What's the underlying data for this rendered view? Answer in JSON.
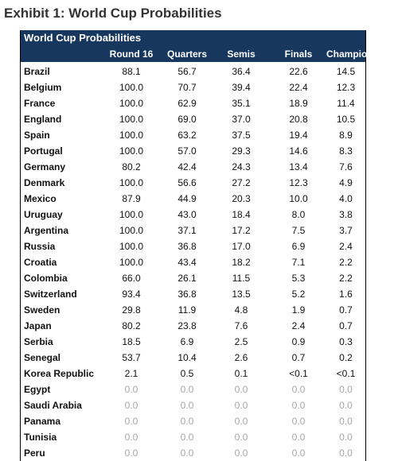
{
  "title": "Exhibit 1: World Cup Probabilities",
  "table": {
    "caption": "World Cup Probabilities",
    "header_color": "#17375e",
    "muted_color": "#a6a6a6",
    "columns": [
      "",
      "Round 16",
      "Quarters",
      "Semis",
      "Finals",
      "Champion"
    ],
    "rows": [
      {
        "cells": [
          "Brazil",
          "88.1",
          "56.7",
          "36.4",
          "22.6",
          "14.5"
        ]
      },
      {
        "cells": [
          "Belgium",
          "100.0",
          "70.7",
          "39.4",
          "22.4",
          "12.3"
        ]
      },
      {
        "cells": [
          "France",
          "100.0",
          "62.9",
          "35.1",
          "18.9",
          "11.4"
        ]
      },
      {
        "cells": [
          "England",
          "100.0",
          "69.0",
          "37.0",
          "20.8",
          "10.5"
        ]
      },
      {
        "cells": [
          "Spain",
          "100.0",
          "63.2",
          "37.5",
          "19.4",
          "8.9"
        ]
      },
      {
        "cells": [
          "Portugal",
          "100.0",
          "57.0",
          "29.3",
          "14.6",
          "8.3"
        ]
      },
      {
        "cells": [
          "Germany",
          "80.2",
          "42.4",
          "24.3",
          "13.4",
          "7.6"
        ]
      },
      {
        "cells": [
          "Denmark",
          "100.0",
          "56.6",
          "27.2",
          "12.3",
          "4.9"
        ]
      },
      {
        "cells": [
          "Mexico",
          "87.9",
          "44.9",
          "20.3",
          "10.0",
          "4.0"
        ]
      },
      {
        "cells": [
          "Uruguay",
          "100.0",
          "43.0",
          "18.4",
          "8.0",
          "3.8"
        ]
      },
      {
        "cells": [
          "Argentina",
          "100.0",
          "37.1",
          "17.2",
          "7.5",
          "3.7"
        ]
      },
      {
        "cells": [
          "Russia",
          "100.0",
          "36.8",
          "17.0",
          "6.9",
          "2.4"
        ]
      },
      {
        "cells": [
          "Croatia",
          "100.0",
          "43.4",
          "18.2",
          "7.1",
          "2.2"
        ]
      },
      {
        "cells": [
          "Colombia",
          "66.0",
          "26.1",
          "11.5",
          "5.3",
          "2.2"
        ]
      },
      {
        "cells": [
          "Switzerland",
          "93.4",
          "36.8",
          "13.5",
          "5.2",
          "1.6"
        ]
      },
      {
        "cells": [
          "Sweden",
          "29.8",
          "11.9",
          "4.8",
          "1.9",
          "0.7"
        ]
      },
      {
        "cells": [
          "Japan",
          "80.2",
          "23.8",
          "7.6",
          "2.4",
          "0.7"
        ]
      },
      {
        "cells": [
          "Serbia",
          "18.5",
          "6.9",
          "2.5",
          "0.9",
          "0.3"
        ]
      },
      {
        "cells": [
          "Senegal",
          "53.7",
          "10.4",
          "2.6",
          "0.7",
          "0.2"
        ]
      },
      {
        "cells": [
          "Korea Republic",
          "2.1",
          "0.5",
          "0.1",
          "<0.1",
          "<0.1"
        ]
      },
      {
        "cells": [
          "Egypt",
          "0.0",
          "0.0",
          "0.0",
          "0.0",
          "0.0"
        ],
        "muted": true
      },
      {
        "cells": [
          "Saudi Arabia",
          "0.0",
          "0.0",
          "0.0",
          "0.0",
          "0.0"
        ],
        "muted": true
      },
      {
        "cells": [
          "Panama",
          "0.0",
          "0.0",
          "0.0",
          "0.0",
          "0.0"
        ],
        "muted": true
      },
      {
        "cells": [
          "Tunisia",
          "0.0",
          "0.0",
          "0.0",
          "0.0",
          "0.0"
        ],
        "muted": true
      },
      {
        "cells": [
          "Peru",
          "0.0",
          "0.0",
          "0.0",
          "0.0",
          "0.0"
        ],
        "muted": true
      }
    ]
  }
}
